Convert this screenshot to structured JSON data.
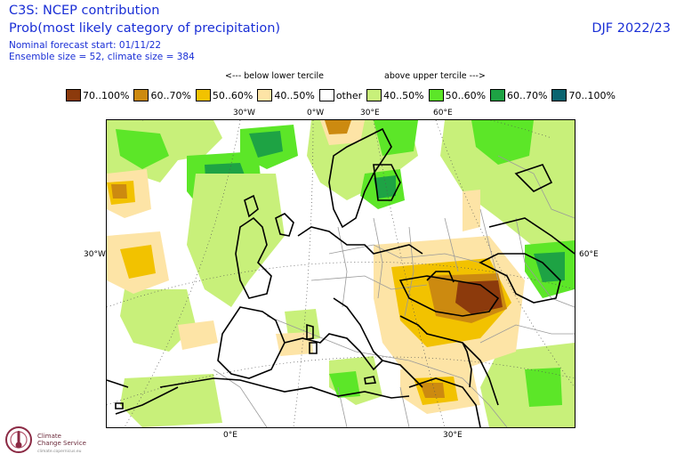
{
  "header": {
    "title_main": "C3S: NCEP contribution",
    "title_sub": "Prob(most likely category of precipitation)",
    "meta_start": "Nominal forecast start: 01/11/22",
    "meta_size": "Ensemble size = 52, climate size = 384",
    "season": "DJF 2022/23"
  },
  "legend": {
    "below_label": "<--- below lower tercile",
    "above_label": "above upper tercile --->",
    "items": [
      {
        "label": "70..100%",
        "color": "#8c3a0c"
      },
      {
        "label": "60..70%",
        "color": "#cc8a10"
      },
      {
        "label": "50..60%",
        "color": "#f2c200"
      },
      {
        "label": "40..50%",
        "color": "#fde4a6"
      },
      {
        "label": "other",
        "color": "#ffffff"
      },
      {
        "label": "40..50%",
        "color": "#c8f07a"
      },
      {
        "label": "50..60%",
        "color": "#5ce628"
      },
      {
        "label": "60..70%",
        "color": "#1ea344"
      },
      {
        "label": "70..100%",
        "color": "#0a6470"
      }
    ]
  },
  "gridlabels": {
    "top_30w": "30°W",
    "top_0w": "0°W",
    "top_30e": "30°E",
    "top_60e": "60°E",
    "left_30w": "30°W",
    "right_60e": "60°E",
    "bottom_0e": "0°E",
    "bottom_30e": "30°E"
  },
  "logo": {
    "line1": "Climate",
    "line2": "Change Service",
    "line3": "climate.copernicus.eu"
  }
}
